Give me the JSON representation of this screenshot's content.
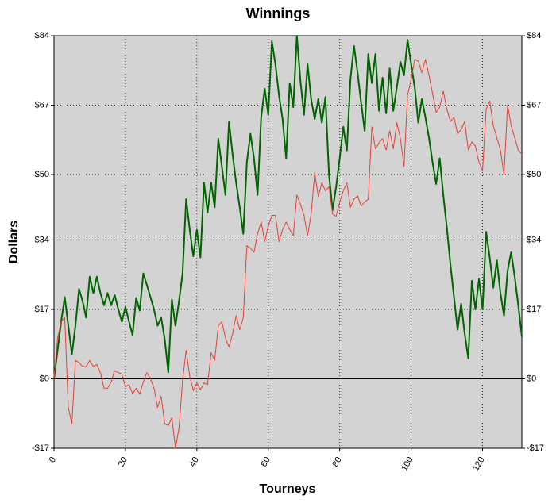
{
  "chart_data": {
    "type": "line",
    "title": "Winnings",
    "x_label": "Tourneys",
    "y_label": "Dollars",
    "x": [
      0,
      1,
      2,
      3,
      4,
      5,
      6,
      7,
      8,
      9,
      10,
      11,
      12,
      13,
      14,
      15,
      16,
      17,
      18,
      19,
      20,
      21,
      22,
      23,
      24,
      25,
      26,
      27,
      28,
      29,
      30,
      31,
      32,
      33,
      34,
      35,
      36,
      37,
      38,
      39,
      40,
      41,
      42,
      43,
      44,
      45,
      46,
      47,
      48,
      49,
      50,
      51,
      52,
      53,
      54,
      55,
      56,
      57,
      58,
      59,
      60,
      61,
      62,
      63,
      64,
      65,
      66,
      67,
      68,
      69,
      70,
      71,
      72,
      73,
      74,
      75,
      76,
      77,
      78,
      79,
      80,
      81,
      82,
      83,
      84,
      85,
      86,
      87,
      88,
      89,
      90,
      91,
      92,
      93,
      94,
      95,
      96,
      97,
      98,
      99,
      100,
      101,
      102,
      103,
      104,
      105,
      106,
      107,
      108,
      109,
      110,
      111,
      112,
      113,
      114,
      115,
      116,
      117,
      118,
      119,
      120,
      121,
      122,
      123,
      124,
      125,
      126,
      127,
      128,
      129,
      130,
      131
    ],
    "series": [
      {
        "color": "#006400",
        "width": 2,
        "values": [
          0,
          7,
          14,
          20,
          13,
          6,
          13,
          22,
          19,
          15,
          25,
          21,
          25,
          21,
          18,
          21,
          18,
          20.5,
          17,
          14,
          17.6,
          14,
          10.7,
          19.8,
          16.7,
          25.8,
          23,
          20,
          17,
          13,
          15,
          9.7,
          1.6,
          19.4,
          13,
          19,
          25.8,
          44,
          36.5,
          30,
          36.5,
          29.7,
          48,
          40.7,
          48,
          42,
          58.8,
          52,
          45,
          63,
          55,
          48,
          42,
          35.5,
          53,
          60,
          54,
          45,
          64,
          71,
          64.6,
          82.6,
          77,
          69.4,
          63.6,
          54,
          72.4,
          66.5,
          84,
          73,
          64.6,
          77,
          68.5,
          63.6,
          68.5,
          62.7,
          69,
          50,
          41.3,
          47,
          54,
          61.7,
          55.9,
          73.3,
          81.5,
          75,
          67.5,
          60.7,
          79.5,
          72.4,
          79.5,
          65.6,
          73.7,
          65,
          76,
          65.6,
          71.4,
          77.6,
          74.3,
          83,
          77,
          71.4,
          62.7,
          68.5,
          64,
          59,
          53,
          47.7,
          54,
          45,
          37,
          28,
          20,
          12,
          18.4,
          11,
          5,
          24,
          17,
          24.4,
          17,
          36,
          29.7,
          22.3,
          29,
          21,
          15.5,
          26.4,
          31,
          25,
          18,
          10.3
        ]
      },
      {
        "color": "#e8403a",
        "width": 1,
        "values": [
          0,
          10,
          14,
          15,
          -7,
          -11,
          4.5,
          4,
          3,
          3,
          4.5,
          3,
          3.5,
          1.5,
          -2.3,
          -2.3,
          -0.8,
          2,
          1.5,
          1.2,
          -2,
          -1.4,
          -3.7,
          -2.3,
          -3.7,
          -0.8,
          1.5,
          0,
          -2.3,
          -7,
          -4.3,
          -11,
          -11.4,
          -9.5,
          -17,
          -12,
          -0.4,
          7,
          0.6,
          -2.9,
          -1,
          -2.7,
          -1,
          -1.4,
          6.4,
          4.5,
          13,
          14,
          10,
          7.8,
          11,
          15.5,
          12,
          15,
          32.6,
          32,
          31,
          35.5,
          38.4,
          33.6,
          37.4,
          40,
          40,
          33.6,
          36.5,
          38.4,
          36.5,
          35,
          45,
          42.7,
          40,
          35,
          40.3,
          50.4,
          44.6,
          48,
          46,
          47,
          40.3,
          39.8,
          43.3,
          46,
          48,
          42,
          44,
          44.8,
          42.3,
          43.3,
          44,
          61.7,
          56.3,
          57.8,
          58.8,
          56,
          60.7,
          56.3,
          62.7,
          58.8,
          52,
          69.4,
          73.3,
          78.2,
          77.8,
          74.9,
          78.2,
          74.3,
          69.8,
          65.2,
          66.5,
          70.4,
          66,
          63,
          64,
          60,
          61,
          63,
          56,
          58,
          57,
          53,
          51,
          66,
          68,
          62,
          59,
          56,
          50,
          67,
          62,
          59,
          56,
          55
        ]
      }
    ],
    "xlim": [
      0,
      131
    ],
    "xticks": [
      0,
      20,
      40,
      60,
      80,
      100,
      120
    ],
    "ylim": [
      -17,
      84
    ],
    "yticks": [
      {
        "value": -17,
        "label": "-$17"
      },
      {
        "value": 0,
        "label": "$0"
      },
      {
        "value": 17,
        "label": "$17"
      },
      {
        "value": 34,
        "label": "$34"
      },
      {
        "value": 50,
        "label": "$50"
      },
      {
        "value": 67,
        "label": "$67"
      },
      {
        "value": 84,
        "label": "$84"
      }
    ],
    "grid": true,
    "plot_background": "#d3d3d3"
  }
}
